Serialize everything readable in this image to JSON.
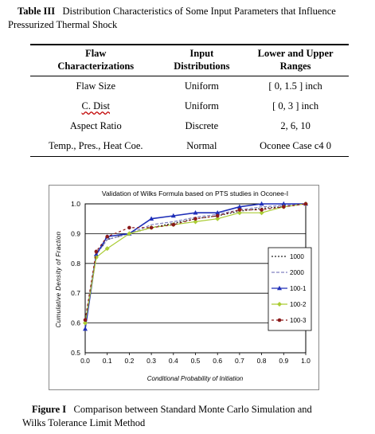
{
  "table_caption": {
    "label": "Table III",
    "line1": "Distribution Characteristics of Some Input Parameters that Influence",
    "line2": "Pressurized  Thermal Shock"
  },
  "table": {
    "headers": [
      [
        "Flaw",
        "Characterizations"
      ],
      [
        "Input",
        "Distributions"
      ],
      [
        "Lower and Upper",
        "Ranges"
      ]
    ],
    "rows": [
      [
        "Flaw Size",
        "Uniform",
        "[ 0, 1.5 ] inch"
      ],
      [
        "C. Dist",
        "Uniform",
        "[ 0, 3 ] inch"
      ],
      [
        "Aspect Ratio",
        "Discrete",
        "2, 6, 10"
      ],
      [
        "Temp., Pres., Heat Coe.",
        "Normal",
        "Oconee Case c4  0"
      ]
    ]
  },
  "figure_caption": {
    "label": "Figure I",
    "line1": "Comparison between Standard Monte Carlo Simulation and",
    "line2": "Wilks  Tolerance Limit Method"
  },
  "chart_data": {
    "type": "line",
    "title": "Validation of Wilks Formula based on PTS studies in Oconee-I",
    "xlabel": "Conditional Probability of Initiation",
    "ylabel": "Cumulative Density of Fraction",
    "xlim": [
      0.0,
      1.0
    ],
    "ylim": [
      0.5,
      1.0
    ],
    "xticks": [
      "0.0",
      "0.1",
      "0.2",
      "0.3",
      "0.4",
      "0.5",
      "0.6",
      "0.7",
      "0.8",
      "0.9",
      "1.0"
    ],
    "yticks": [
      "0.5",
      "0.6",
      "0.7",
      "0.8",
      "0.9",
      "1.0"
    ],
    "grid": "horizontal",
    "legend_position": "right",
    "series": [
      {
        "name": "1000",
        "color": "#222222",
        "marker": "none",
        "dash": "2,2",
        "x": [
          0,
          0.05,
          0.1,
          0.15,
          0.2,
          0.3,
          0.4,
          0.5,
          0.6,
          0.7,
          0.8,
          0.9,
          1.0
        ],
        "y": [
          0.6,
          0.83,
          0.88,
          0.89,
          0.9,
          0.92,
          0.935,
          0.95,
          0.96,
          0.975,
          0.985,
          0.99,
          1.0
        ]
      },
      {
        "name": "2000",
        "color": "#8080c0",
        "marker": "none",
        "dash": "4,2",
        "x": [
          0,
          0.05,
          0.1,
          0.15,
          0.2,
          0.3,
          0.4,
          0.5,
          0.6,
          0.7,
          0.8,
          0.9,
          1.0
        ],
        "y": [
          0.6,
          0.83,
          0.88,
          0.89,
          0.9,
          0.93,
          0.94,
          0.955,
          0.965,
          0.98,
          0.99,
          0.995,
          1.0
        ]
      },
      {
        "name": "100-1",
        "color": "#1f2fb8",
        "marker": "triangle",
        "dash": "",
        "x": [
          0,
          0.05,
          0.1,
          0.2,
          0.3,
          0.4,
          0.5,
          0.6,
          0.7,
          0.8,
          0.9,
          1.0
        ],
        "y": [
          0.58,
          0.83,
          0.89,
          0.9,
          0.95,
          0.96,
          0.97,
          0.97,
          0.99,
          1.0,
          1.0,
          1.0
        ]
      },
      {
        "name": "100-2",
        "color": "#aacc33",
        "marker": "diamond",
        "dash": "",
        "x": [
          0,
          0.05,
          0.1,
          0.2,
          0.3,
          0.4,
          0.5,
          0.6,
          0.7,
          0.8,
          0.9,
          1.0
        ],
        "y": [
          0.6,
          0.82,
          0.85,
          0.9,
          0.92,
          0.93,
          0.94,
          0.95,
          0.97,
          0.97,
          0.99,
          1.0
        ]
      },
      {
        "name": "100-3",
        "color": "#8b1a1a",
        "marker": "circle",
        "dash": "3,3",
        "x": [
          0,
          0.05,
          0.1,
          0.2,
          0.3,
          0.4,
          0.5,
          0.6,
          0.7,
          0.8,
          0.9,
          1.0
        ],
        "y": [
          0.61,
          0.84,
          0.89,
          0.92,
          0.92,
          0.93,
          0.95,
          0.96,
          0.98,
          0.98,
          0.99,
          1.0
        ]
      }
    ]
  }
}
